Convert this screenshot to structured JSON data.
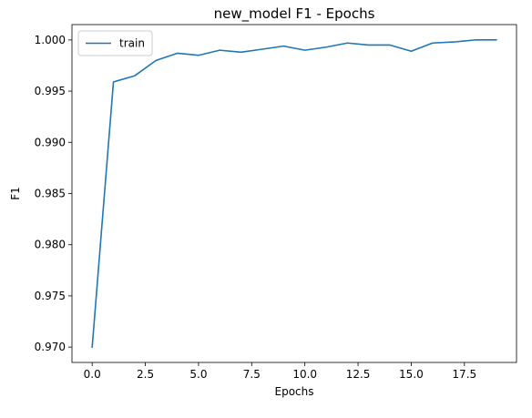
{
  "chart_data": {
    "type": "line",
    "title": "new_model F1 - Epochs",
    "xlabel": "Epochs",
    "ylabel": "F1",
    "xlim": [
      -0.95,
      19.95
    ],
    "ylim": [
      0.9685,
      1.0015
    ],
    "xticks": [
      0.0,
      2.5,
      5.0,
      7.5,
      10.0,
      12.5,
      15.0,
      17.5
    ],
    "xtick_labels": [
      "0.0",
      "2.5",
      "5.0",
      "7.5",
      "10.0",
      "12.5",
      "15.0",
      "17.5"
    ],
    "yticks": [
      0.97,
      0.975,
      0.98,
      0.985,
      0.99,
      0.995,
      1.0
    ],
    "ytick_labels": [
      "0.970",
      "0.975",
      "0.980",
      "0.985",
      "0.990",
      "0.995",
      "1.000"
    ],
    "grid": false,
    "legend_position": "upper-left",
    "series": [
      {
        "name": "train",
        "color": "#1f77b4",
        "x": [
          0,
          1,
          2,
          3,
          4,
          5,
          6,
          7,
          8,
          9,
          10,
          11,
          12,
          13,
          14,
          15,
          16,
          17,
          18,
          19
        ],
        "values": [
          0.97,
          0.9959,
          0.9965,
          0.998,
          0.9987,
          0.9985,
          0.999,
          0.9988,
          0.9991,
          0.9994,
          0.999,
          0.9993,
          0.9997,
          0.9995,
          0.9995,
          0.9989,
          0.9997,
          0.9998,
          1.0,
          1.0
        ]
      }
    ]
  }
}
